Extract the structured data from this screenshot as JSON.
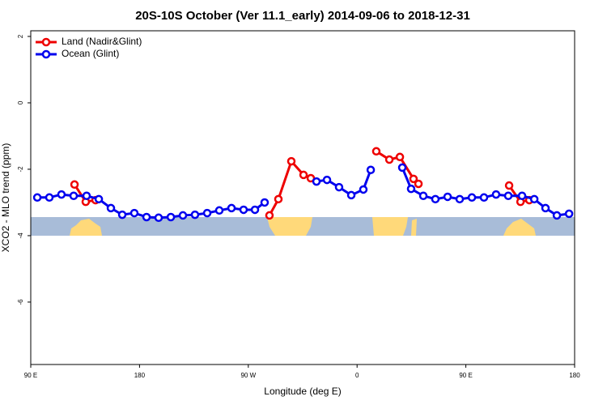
{
  "chart_data": {
    "type": "line",
    "title": "20S-10S October (Ver 11.1_early)   2014-09-06 to 2018-12-31",
    "x_label": "Longitude (deg E)",
    "y_label": "XCO2 - MLO trend (ppm)",
    "xlim": [
      90,
      540
    ],
    "ylim": [
      -7.88,
      2.17
    ],
    "xticks": [
      {
        "value": 90,
        "label": "90 E"
      },
      180,
      {
        "value": 270,
        "label": "90 W"
      },
      {
        "value": 360,
        "label": "0"
      },
      {
        "value": 450,
        "label": "90 E"
      },
      {
        "value": 540,
        "label": "180"
      }
    ],
    "yticks": [
      2,
      0,
      -2,
      -4,
      -6
    ],
    "legend": "top-left",
    "series": [
      {
        "name": "Land (Nadir&Glint)",
        "color": "#ee0000",
        "x": [
          126.2,
          135.5,
          143.6,
          null,
          287.5,
          294.9,
          305.6,
          315.7,
          321.7,
          null,
          375.9,
          386.7,
          395.4,
          406.7,
          410.8,
          null,
          485.8,
          495.2,
          502.5
        ],
        "values": [
          -2.46,
          -2.98,
          -2.93,
          null,
          -3.39,
          -2.9,
          -1.76,
          -2.17,
          -2.27,
          null,
          -1.46,
          -1.71,
          -1.63,
          -2.29,
          -2.44,
          null,
          -2.49,
          -2.98,
          -2.93
        ]
      },
      {
        "name": "Ocean (Glint)",
        "color": "#0000ee",
        "x": [
          95.4,
          105.4,
          115.4,
          125.5,
          136.2,
          146.3,
          156.3,
          165.7,
          175.7,
          185.8,
          195.8,
          205.9,
          215.9,
          225.9,
          236,
          246,
          256.1,
          266.1,
          275.5,
          283.5,
          null,
          326.4,
          335.1,
          345.1,
          355.2,
          365.2,
          371.3,
          null,
          397.4,
          404.7,
          414.8,
          424.8,
          434.9,
          444.9,
          455,
          465,
          475,
          485.1,
          496.5,
          506.6,
          515.9,
          525.3,
          535.4
        ],
        "values": [
          -2.85,
          -2.85,
          -2.76,
          -2.8,
          -2.8,
          -2.9,
          -3.17,
          -3.37,
          -3.32,
          -3.44,
          -3.46,
          -3.44,
          -3.39,
          -3.37,
          -3.32,
          -3.24,
          -3.17,
          -3.22,
          -3.22,
          -3.0,
          null,
          -2.37,
          -2.32,
          -2.54,
          -2.78,
          -2.61,
          -2.02,
          null,
          -1.95,
          -2.59,
          -2.8,
          -2.9,
          -2.83,
          -2.9,
          -2.85,
          -2.85,
          -2.76,
          -2.8,
          -2.8,
          -2.9,
          -3.17,
          -3.39,
          -3.34
        ]
      }
    ]
  }
}
